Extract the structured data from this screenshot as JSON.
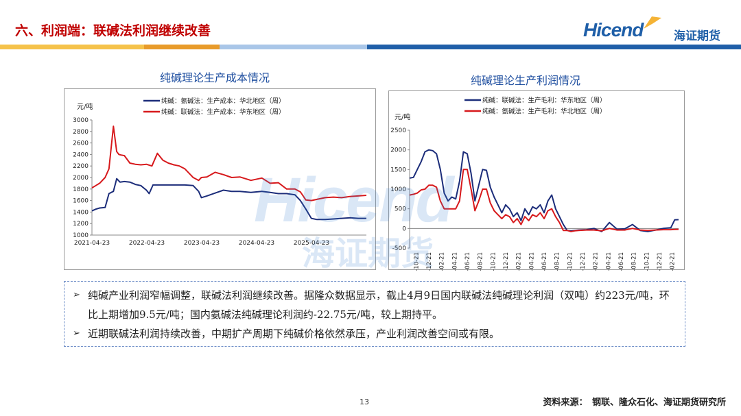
{
  "header": {
    "title": "六、利润端：联碱法利润继续改善",
    "logo_text": "Hicend",
    "logo_cn": "海证期货"
  },
  "colors": {
    "title_red": "#c00000",
    "navy": "#1c2d7a",
    "red": "#d7191c",
    "stripe": [
      "#f5c24a",
      "#e89b2a",
      "#a9c6e8",
      "#1f5fa8"
    ]
  },
  "watermark": {
    "text": "Hicend",
    "cn": "海证期货"
  },
  "chart_data": [
    {
      "type": "line",
      "title": "纯碱理论生产成本情况",
      "ylabel": "元/吨",
      "ylim": [
        1000,
        3000
      ],
      "yticks": [
        "3000",
        "2800",
        "2600",
        "2400",
        "2200",
        "2000",
        "1800",
        "1600",
        "1400",
        "1200",
        "1000"
      ],
      "xticks": [
        "2021-04-23",
        "2022-04-23",
        "2023-04-23",
        "2024-04-23",
        "2025-04-23"
      ],
      "xrange": [
        2021.31,
        2026.3
      ],
      "series": [
        {
          "name": "纯碱：氨碱法：生产成本：华北地区（周）",
          "color": "#1c2d7a",
          "x": [
            2021.31,
            2021.38,
            2021.45,
            2021.55,
            2021.62,
            2021.7,
            2021.76,
            2021.82,
            2021.9,
            2022.0,
            2022.1,
            2022.2,
            2022.3,
            2022.35,
            2022.42,
            2022.5,
            2022.6,
            2022.8,
            2023.0,
            2023.15,
            2023.25,
            2023.3,
            2023.4,
            2023.55,
            2023.7,
            2023.85,
            2024.0,
            2024.2,
            2024.4,
            2024.55,
            2024.7,
            2024.85,
            2025.0,
            2025.1,
            2025.2,
            2025.3,
            2025.4,
            2025.55,
            2025.7,
            2025.85,
            2026.0,
            2026.15,
            2026.3
          ],
          "values": [
            1420,
            1450,
            1470,
            1480,
            1720,
            1760,
            1980,
            1920,
            1930,
            1920,
            1880,
            1860,
            1780,
            1720,
            1870,
            1870,
            1870,
            1870,
            1870,
            1860,
            1760,
            1650,
            1680,
            1730,
            1780,
            1760,
            1760,
            1740,
            1760,
            1740,
            1720,
            1720,
            1700,
            1600,
            1450,
            1290,
            1270,
            1270,
            1280,
            1290,
            1300,
            1290,
            1290
          ]
        },
        {
          "name": "纯碱：联碱法：生产成本：华东地区（周）",
          "color": "#d7191c",
          "x": [
            2021.31,
            2021.38,
            2021.45,
            2021.55,
            2021.62,
            2021.7,
            2021.76,
            2021.8,
            2021.84,
            2021.9,
            2022.0,
            2022.1,
            2022.2,
            2022.3,
            2022.4,
            2022.5,
            2022.6,
            2022.7,
            2022.8,
            2022.9,
            2023.0,
            2023.15,
            2023.25,
            2023.3,
            2023.4,
            2023.55,
            2023.7,
            2023.85,
            2024.0,
            2024.2,
            2024.4,
            2024.55,
            2024.7,
            2024.85,
            2025.0,
            2025.1,
            2025.2,
            2025.3,
            2025.4,
            2025.55,
            2025.7,
            2025.85,
            2026.0,
            2026.15,
            2026.3
          ],
          "values": [
            1820,
            1860,
            1900,
            2000,
            2150,
            2890,
            2450,
            2400,
            2390,
            2380,
            2250,
            2230,
            2220,
            2230,
            2200,
            2420,
            2300,
            2250,
            2220,
            2200,
            2150,
            2000,
            1950,
            2000,
            2010,
            2090,
            2050,
            2000,
            2010,
            1950,
            1990,
            1900,
            1910,
            1800,
            1800,
            1750,
            1610,
            1600,
            1620,
            1650,
            1660,
            1650,
            1670,
            1680,
            1690
          ]
        }
      ]
    },
    {
      "type": "line",
      "title": "纯碱理论生产利润情况",
      "ylabel": "元/吨",
      "ylim": [
        -500,
        2500
      ],
      "yticks": [
        "2500",
        "2000",
        "1500",
        "1000",
        "500",
        "0",
        "-500"
      ],
      "xticks": [
        "2022-10-21",
        "2022-12-21",
        "2023-02-21",
        "2023-04-21",
        "2023-06-21",
        "2023-08-21",
        "2023-10-21",
        "2023-12-21",
        "2024-02-21",
        "2024-04-21",
        "2024-06-21",
        "2024-08-21",
        "2024-10-21",
        "2024-12-21",
        "2025-02-21",
        "2025-04-21",
        "2025-06-21",
        "2025-08-21",
        "2025-10-21",
        "2025-12-21",
        "2026-02-21"
      ],
      "xrange": [
        2022.8,
        2026.3
      ],
      "series": [
        {
          "name": "纯碱：联碱法：生产毛利：华东地区（周）",
          "color": "#1c2d7a",
          "x": [
            2022.8,
            2022.85,
            2022.9,
            2022.95,
            2023.0,
            2023.05,
            2023.1,
            2023.15,
            2023.2,
            2023.25,
            2023.3,
            2023.35,
            2023.4,
            2023.45,
            2023.5,
            2023.55,
            2023.6,
            2023.65,
            2023.7,
            2023.75,
            2023.8,
            2023.85,
            2023.9,
            2023.95,
            2024.0,
            2024.05,
            2024.1,
            2024.15,
            2024.2,
            2024.25,
            2024.3,
            2024.35,
            2024.4,
            2024.45,
            2024.5,
            2024.55,
            2024.6,
            2024.65,
            2024.7,
            2024.75,
            2024.8,
            2024.85,
            2024.9,
            2024.95,
            2025.0,
            2025.1,
            2025.2,
            2025.3,
            2025.4,
            2025.5,
            2025.6,
            2025.7,
            2025.8,
            2025.9,
            2026.0,
            2026.1,
            2026.2,
            2026.25,
            2026.3
          ],
          "values": [
            1280,
            1300,
            1500,
            1700,
            1950,
            2000,
            1980,
            1900,
            1500,
            900,
            700,
            800,
            750,
            1200,
            1950,
            1900,
            1400,
            700,
            1100,
            1500,
            1480,
            1050,
            800,
            600,
            400,
            600,
            500,
            300,
            400,
            200,
            500,
            350,
            550,
            500,
            600,
            400,
            700,
            850,
            500,
            300,
            100,
            -50,
            -60,
            -50,
            -40,
            -30,
            0,
            -80,
            150,
            -20,
            -10,
            100,
            -50,
            -80,
            -40,
            0,
            20,
            220,
            223
          ]
        },
        {
          "name": "纯碱：氨碱法：生产毛利：华北地区（周）",
          "color": "#d7191c",
          "x": [
            2022.8,
            2022.85,
            2022.9,
            2022.95,
            2023.0,
            2023.05,
            2023.1,
            2023.15,
            2023.2,
            2023.25,
            2023.3,
            2023.35,
            2023.4,
            2023.45,
            2023.5,
            2023.55,
            2023.6,
            2023.65,
            2023.7,
            2023.75,
            2023.8,
            2023.85,
            2023.9,
            2023.95,
            2024.0,
            2024.05,
            2024.1,
            2024.15,
            2024.2,
            2024.25,
            2024.3,
            2024.35,
            2024.4,
            2024.45,
            2024.5,
            2024.55,
            2024.6,
            2024.65,
            2024.7,
            2024.75,
            2024.8,
            2024.85,
            2024.9,
            2024.95,
            2025.0,
            2025.1,
            2025.2,
            2025.3,
            2025.4,
            2025.5,
            2025.6,
            2025.7,
            2025.8,
            2025.9,
            2026.0,
            2026.1,
            2026.2,
            2026.25,
            2026.3
          ],
          "values": [
            850,
            870,
            900,
            980,
            1000,
            1100,
            1100,
            1050,
            700,
            500,
            500,
            500,
            500,
            700,
            1500,
            1500,
            1000,
            450,
            700,
            1000,
            1000,
            650,
            450,
            350,
            250,
            350,
            300,
            150,
            250,
            100,
            300,
            200,
            350,
            300,
            400,
            250,
            450,
            500,
            300,
            150,
            -50,
            -50,
            -80,
            -60,
            -50,
            -40,
            -40,
            -60,
            0,
            -40,
            -40,
            0,
            -40,
            -50,
            -40,
            -30,
            -30,
            -25,
            -22.75
          ]
        }
      ]
    }
  ],
  "bullets": [
    "纯碱产业利润窄幅调整，联碱法利润继续改善。据隆众数据显示，截止4月9日国内联碱法纯碱理论利润（双吨）约223元/吨，环比上期增加9.5元/吨；国内氨碱法纯碱理论利润约-22.75元/吨，较上期持平。",
    "近期联碱法利润持续改善，中期扩产周期下纯碱价格依然承压，产业利润改善空间或有限。"
  ],
  "footer": {
    "page_number": "13",
    "source": "资料来源：　钢联、隆众石化、海证期货研究所"
  }
}
